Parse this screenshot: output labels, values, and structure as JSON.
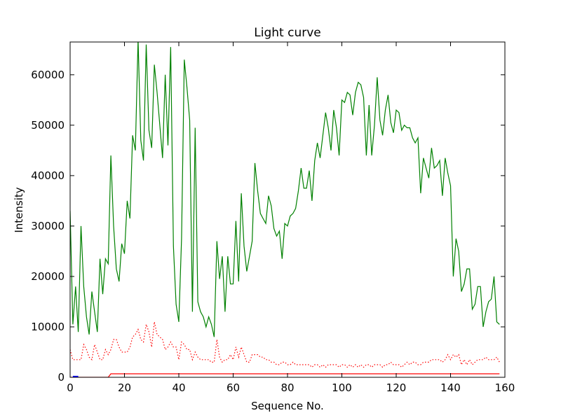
{
  "chart_data": {
    "type": "line",
    "title": "Light curve",
    "xlabel": "Sequence No.",
    "ylabel": "Intensity",
    "xlim": [
      0,
      160
    ],
    "ylim": [
      0,
      66500
    ],
    "xticks": [
      0,
      20,
      40,
      60,
      80,
      100,
      120,
      140,
      160
    ],
    "yticks": [
      0,
      10000,
      20000,
      30000,
      40000,
      50000,
      60000
    ],
    "grid": false,
    "series": [
      {
        "color": "#008000",
        "style": "solid",
        "values": [
          33000,
          10500,
          18000,
          9000,
          30000,
          18000,
          12000,
          8500,
          17000,
          13000,
          9000,
          23500,
          16500,
          23500,
          22500,
          44000,
          30000,
          21500,
          19000,
          26500,
          24500,
          35000,
          31500,
          48000,
          45000,
          67000,
          47000,
          43000,
          66000,
          49000,
          45500,
          62000,
          56500,
          50000,
          43500,
          60000,
          46000,
          65500,
          26000,
          14500,
          11000,
          27500,
          63000,
          57500,
          51000,
          13000,
          49500,
          15000,
          13000,
          12000,
          10000,
          12000,
          10500,
          8000,
          27000,
          19500,
          24000,
          13000,
          24000,
          18500,
          18500,
          31000,
          19000,
          36500,
          26000,
          21000,
          24000,
          27000,
          42500,
          37000,
          32500,
          31500,
          30500,
          36000,
          34000,
          29500,
          28000,
          29000,
          23500,
          30500,
          30000,
          32000,
          32500,
          33500,
          37000,
          41500,
          37500,
          37500,
          41000,
          35000,
          43000,
          46500,
          43500,
          48000,
          52500,
          49500,
          45000,
          53000,
          49500,
          44000,
          55000,
          54500,
          56500,
          56000,
          52000,
          56500,
          58500,
          58000,
          55500,
          44000,
          54000,
          44000,
          50000,
          59500,
          51000,
          48000,
          53000,
          56000,
          50500,
          48500,
          53000,
          52500,
          49000,
          50000,
          49500,
          49500,
          47500,
          46500,
          47500,
          36500,
          43500,
          41500,
          39500,
          45500,
          41500,
          42000,
          43000,
          36000,
          43500,
          40500,
          38000,
          20000,
          27500,
          25000,
          17000,
          18500,
          21500,
          21500,
          13500,
          14500,
          18000,
          18000,
          10000,
          13000,
          15000,
          15500,
          20000,
          11000,
          10500
        ]
      },
      {
        "color": "#ff0000",
        "style": "dotted",
        "values": [
          5500,
          3500,
          3500,
          3500,
          3500,
          6500,
          5500,
          4000,
          3500,
          6500,
          5000,
          3500,
          3500,
          5500,
          4500,
          5500,
          7500,
          7500,
          6000,
          5000,
          5000,
          5000,
          6000,
          8000,
          8500,
          9500,
          7500,
          7000,
          10500,
          9000,
          6000,
          11000,
          8500,
          8000,
          7500,
          5500,
          6000,
          7000,
          6000,
          6000,
          3500,
          7000,
          6500,
          5500,
          5500,
          3500,
          5000,
          4000,
          3500,
          3500,
          3500,
          3500,
          3000,
          3000,
          7500,
          4000,
          3000,
          3500,
          3500,
          4500,
          3500,
          6000,
          4000,
          6000,
          4500,
          3000,
          3000,
          4500,
          4500,
          4500,
          4000,
          4000,
          3500,
          3500,
          3000,
          3000,
          2500,
          2500,
          3000,
          3000,
          2500,
          2500,
          3000,
          2500,
          2500,
          2500,
          2500,
          2500,
          2500,
          2000,
          2500,
          2500,
          2000,
          2500,
          2000,
          2500,
          2500,
          2500,
          2500,
          2000,
          2500,
          2500,
          2000,
          2500,
          2000,
          2500,
          2000,
          2500,
          2000,
          2500,
          2500,
          2000,
          2500,
          2500,
          2500,
          2000,
          2500,
          2500,
          3000,
          2500,
          2500,
          2500,
          2000,
          2500,
          3000,
          2500,
          3000,
          3000,
          2500,
          2500,
          3000,
          3000,
          3000,
          3500,
          3500,
          3500,
          3500,
          3000,
          3500,
          4500,
          3500,
          4500,
          4000,
          4500,
          2500,
          3500,
          2500,
          3500,
          2500,
          3000,
          3500,
          3500,
          3500,
          4000,
          3500,
          3500,
          3500,
          4000,
          3000
        ]
      },
      {
        "color": "#ff0000",
        "style": "solid",
        "x": [
          0,
          14,
          15,
          158
        ],
        "values": [
          0,
          0,
          700,
          700
        ]
      },
      {
        "color": "#0000ff",
        "style": "solid",
        "x": [
          1,
          3
        ],
        "values": [
          150,
          150
        ]
      }
    ]
  }
}
